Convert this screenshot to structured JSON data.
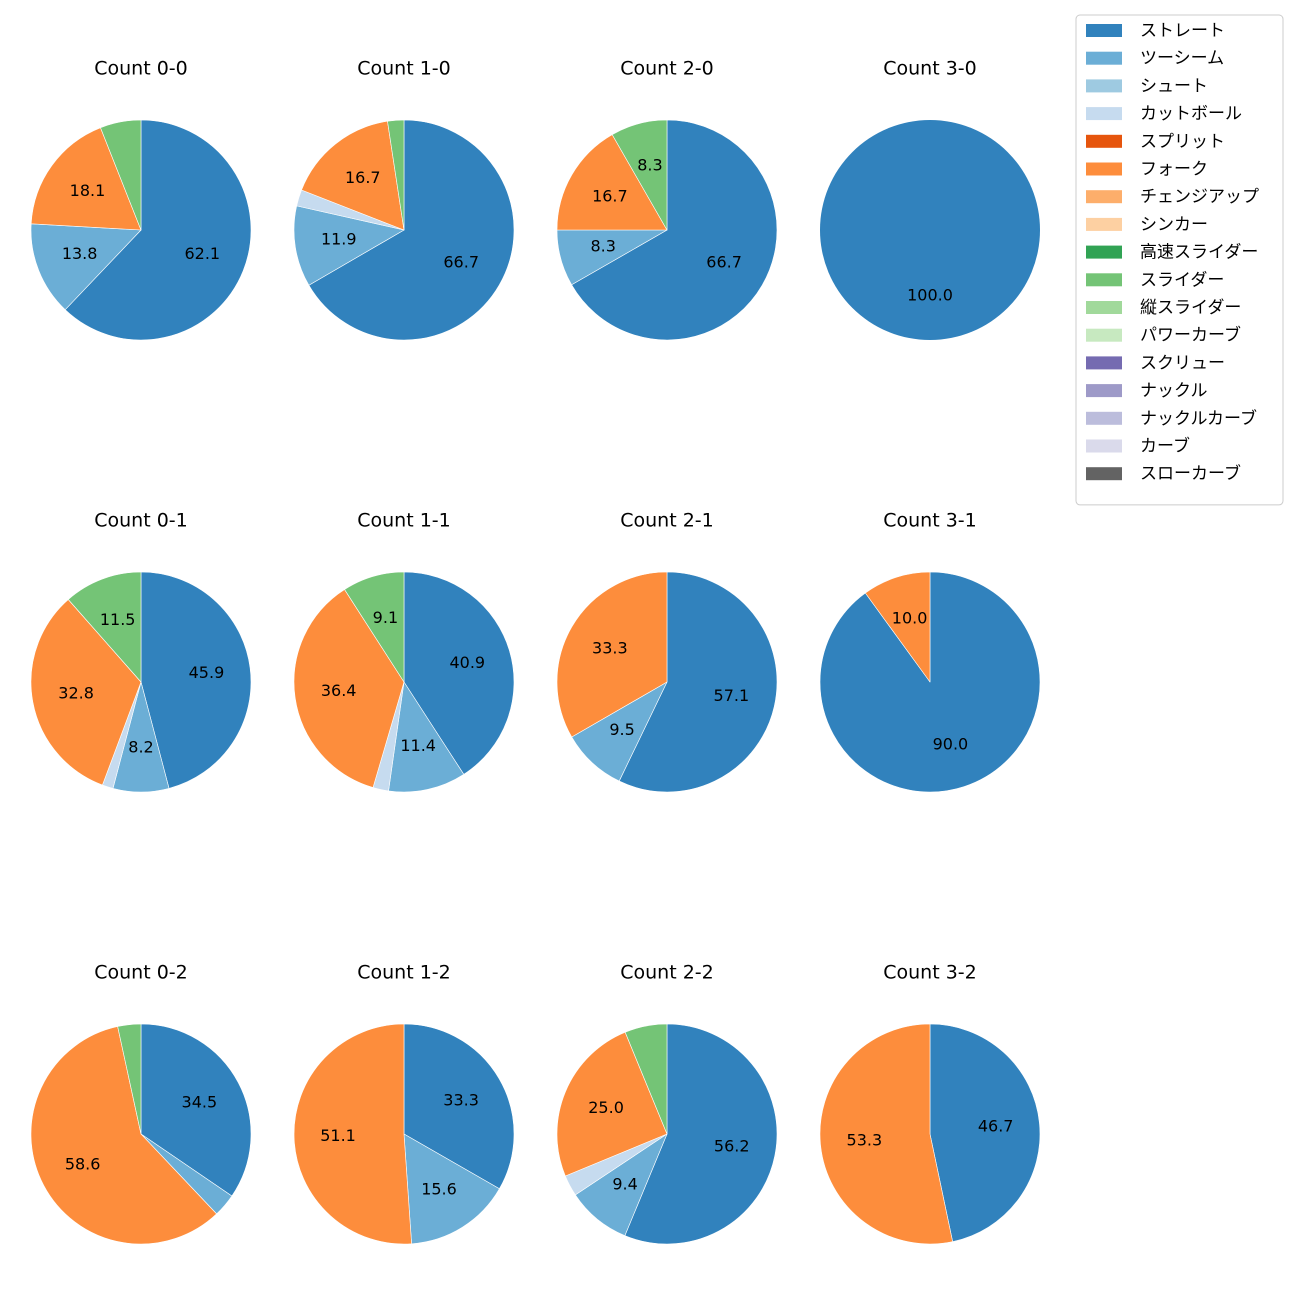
{
  "chart_data": {
    "type": "pie",
    "legend": {
      "placement": "top-right",
      "entries": [
        {
          "name": "ストレート",
          "color": "#3182bd"
        },
        {
          "name": "ツーシーム",
          "color": "#6baed6"
        },
        {
          "name": "シュート",
          "color": "#9ecae1"
        },
        {
          "name": "カットボール",
          "color": "#c6dbef"
        },
        {
          "name": "スプリット",
          "color": "#e6550d"
        },
        {
          "name": "フォーク",
          "color": "#fd8d3c"
        },
        {
          "name": "チェンジアップ",
          "color": "#fdae6b"
        },
        {
          "name": "シンカー",
          "color": "#fdd0a2"
        },
        {
          "name": "高速スライダー",
          "color": "#31a354"
        },
        {
          "name": "スライダー",
          "color": "#74c476"
        },
        {
          "name": "縦スライダー",
          "color": "#a1d99b"
        },
        {
          "name": "パワーカーブ",
          "color": "#c7e9c0"
        },
        {
          "name": "スクリュー",
          "color": "#756bb1"
        },
        {
          "name": "ナックル",
          "color": "#9e9ac8"
        },
        {
          "name": "ナックルカーブ",
          "color": "#bcbddc"
        },
        {
          "name": "カーブ",
          "color": "#dadaeb"
        },
        {
          "name": "スローカーブ",
          "color": "#636363"
        }
      ]
    },
    "charts": [
      {
        "title": "Count 0-0",
        "slices": [
          {
            "pitch": "ストレート",
            "value": 62.1,
            "label": "62.1"
          },
          {
            "pitch": "ツーシーム",
            "value": 13.8,
            "label": "13.8"
          },
          {
            "pitch": "フォーク",
            "value": 18.1,
            "label": "18.1"
          },
          {
            "pitch": "スライダー",
            "value": 6.0,
            "label": ""
          }
        ]
      },
      {
        "title": "Count 1-0",
        "slices": [
          {
            "pitch": "ストレート",
            "value": 66.7,
            "label": "66.7"
          },
          {
            "pitch": "ツーシーム",
            "value": 11.9,
            "label": "11.9"
          },
          {
            "pitch": "カットボール",
            "value": 2.4,
            "label": ""
          },
          {
            "pitch": "フォーク",
            "value": 16.7,
            "label": "16.7"
          },
          {
            "pitch": "スライダー",
            "value": 2.4,
            "label": ""
          }
        ]
      },
      {
        "title": "Count 2-0",
        "slices": [
          {
            "pitch": "ストレート",
            "value": 66.7,
            "label": "66.7"
          },
          {
            "pitch": "ツーシーム",
            "value": 8.3,
            "label": "8.3"
          },
          {
            "pitch": "フォーク",
            "value": 16.7,
            "label": "16.7"
          },
          {
            "pitch": "スライダー",
            "value": 8.3,
            "label": "8.3"
          }
        ]
      },
      {
        "title": "Count 3-0",
        "slices": [
          {
            "pitch": "ストレート",
            "value": 100.0,
            "label": "100.0"
          }
        ]
      },
      {
        "title": "Count 0-1",
        "slices": [
          {
            "pitch": "ストレート",
            "value": 45.9,
            "label": "45.9"
          },
          {
            "pitch": "ツーシーム",
            "value": 8.2,
            "label": "8.2"
          },
          {
            "pitch": "カットボール",
            "value": 1.6,
            "label": ""
          },
          {
            "pitch": "フォーク",
            "value": 32.8,
            "label": "32.8"
          },
          {
            "pitch": "スライダー",
            "value": 11.5,
            "label": "11.5"
          }
        ]
      },
      {
        "title": "Count 1-1",
        "slices": [
          {
            "pitch": "ストレート",
            "value": 40.9,
            "label": "40.9"
          },
          {
            "pitch": "ツーシーム",
            "value": 11.4,
            "label": "11.4"
          },
          {
            "pitch": "カットボール",
            "value": 2.3,
            "label": ""
          },
          {
            "pitch": "フォーク",
            "value": 36.4,
            "label": "36.4"
          },
          {
            "pitch": "スライダー",
            "value": 9.1,
            "label": "9.1"
          }
        ]
      },
      {
        "title": "Count 2-1",
        "slices": [
          {
            "pitch": "ストレート",
            "value": 57.1,
            "label": "57.1"
          },
          {
            "pitch": "ツーシーム",
            "value": 9.5,
            "label": "9.5"
          },
          {
            "pitch": "フォーク",
            "value": 33.3,
            "label": "33.3"
          }
        ]
      },
      {
        "title": "Count 3-1",
        "slices": [
          {
            "pitch": "ストレート",
            "value": 90.0,
            "label": "90.0"
          },
          {
            "pitch": "フォーク",
            "value": 10.0,
            "label": "10.0"
          }
        ]
      },
      {
        "title": "Count 0-2",
        "slices": [
          {
            "pitch": "ストレート",
            "value": 34.5,
            "label": "34.5"
          },
          {
            "pitch": "ツーシーム",
            "value": 3.4,
            "label": ""
          },
          {
            "pitch": "フォーク",
            "value": 58.6,
            "label": "58.6"
          },
          {
            "pitch": "スライダー",
            "value": 3.4,
            "label": ""
          }
        ]
      },
      {
        "title": "Count 1-2",
        "slices": [
          {
            "pitch": "ストレート",
            "value": 33.3,
            "label": "33.3"
          },
          {
            "pitch": "ツーシーム",
            "value": 15.6,
            "label": "15.6"
          },
          {
            "pitch": "フォーク",
            "value": 51.1,
            "label": "51.1"
          }
        ]
      },
      {
        "title": "Count 2-2",
        "slices": [
          {
            "pitch": "ストレート",
            "value": 56.2,
            "label": "56.2"
          },
          {
            "pitch": "ツーシーム",
            "value": 9.4,
            "label": "9.4"
          },
          {
            "pitch": "カットボール",
            "value": 3.1,
            "label": ""
          },
          {
            "pitch": "フォーク",
            "value": 25.0,
            "label": "25.0"
          },
          {
            "pitch": "スライダー",
            "value": 6.2,
            "label": ""
          }
        ]
      },
      {
        "title": "Count 3-2",
        "slices": [
          {
            "pitch": "ストレート",
            "value": 46.7,
            "label": "46.7"
          },
          {
            "pitch": "フォーク",
            "value": 53.3,
            "label": "53.3"
          }
        ]
      }
    ]
  }
}
